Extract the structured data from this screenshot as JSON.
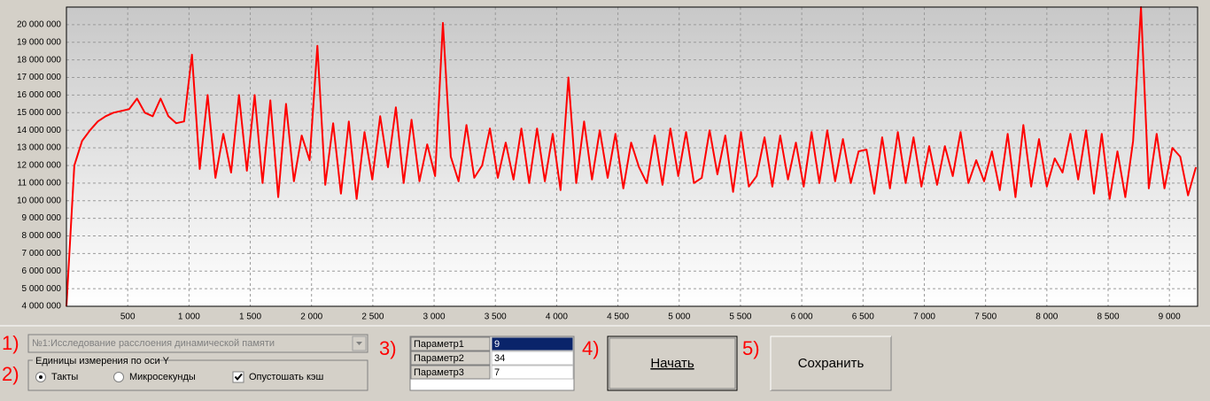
{
  "chart_data": {
    "type": "line",
    "color": "#ff0000",
    "grid": true,
    "xlim": [
      0,
      9230
    ],
    "ylim": [
      4000000,
      21000000
    ],
    "xticks": [
      500,
      {
        "value": 1000,
        "label": "1 000"
      },
      {
        "value": 1500,
        "label": "1 500"
      },
      {
        "value": 2000,
        "label": "2 000"
      },
      {
        "value": 2500,
        "label": "2 500"
      },
      {
        "value": 3000,
        "label": "3 000"
      },
      {
        "value": 3500,
        "label": "3 500"
      },
      {
        "value": 4000,
        "label": "4 000"
      },
      {
        "value": 4500,
        "label": "4 500"
      },
      {
        "value": 5000,
        "label": "5 000"
      },
      {
        "value": 5500,
        "label": "5 500"
      },
      {
        "value": 6000,
        "label": "6 000"
      },
      {
        "value": 6500,
        "label": "6 500"
      },
      {
        "value": 7000,
        "label": "7 000"
      },
      {
        "value": 7500,
        "label": "7 500"
      },
      {
        "value": 8000,
        "label": "8 000"
      },
      {
        "value": 8500,
        "label": "8 500"
      },
      {
        "value": 9000,
        "label": "9 000"
      }
    ],
    "yticks": [
      {
        "value": 4000000,
        "label": "4 000 000"
      },
      {
        "value": 5000000,
        "label": "5 000 000"
      },
      {
        "value": 6000000,
        "label": "6 000 000"
      },
      {
        "value": 7000000,
        "label": "7 000 000"
      },
      {
        "value": 8000000,
        "label": "8 000 000"
      },
      {
        "value": 9000000,
        "label": "9 000 000"
      },
      {
        "value": 10000000,
        "label": "10 000 000"
      },
      {
        "value": 11000000,
        "label": "11 000 000"
      },
      {
        "value": 12000000,
        "label": "12 000 000"
      },
      {
        "value": 13000000,
        "label": "13 000 000"
      },
      {
        "value": 14000000,
        "label": "14 000 000"
      },
      {
        "value": 15000000,
        "label": "15 000 000"
      },
      {
        "value": 16000000,
        "label": "16 000 000"
      },
      {
        "value": 17000000,
        "label": "17 000 000"
      },
      {
        "value": 18000000,
        "label": "18 000 000"
      },
      {
        "value": 19000000,
        "label": "19 000 000"
      },
      {
        "value": 20000000,
        "label": "20 000 000"
      }
    ],
    "x": [
      0,
      64,
      128,
      192,
      256,
      320,
      384,
      448,
      512,
      576,
      640,
      704,
      768,
      832,
      896,
      960,
      1024,
      1088,
      1152,
      1216,
      1280,
      1344,
      1408,
      1472,
      1536,
      1600,
      1664,
      1728,
      1792,
      1856,
      1920,
      1984,
      2048,
      2112,
      2176,
      2240,
      2304,
      2368,
      2432,
      2496,
      2560,
      2624,
      2688,
      2752,
      2816,
      2880,
      2944,
      3008,
      3072,
      3136,
      3200,
      3264,
      3328,
      3392,
      3456,
      3520,
      3584,
      3648,
      3712,
      3776,
      3840,
      3904,
      3968,
      4032,
      4096,
      4160,
      4224,
      4288,
      4352,
      4416,
      4480,
      4544,
      4608,
      4672,
      4736,
      4800,
      4864,
      4928,
      4992,
      5056,
      5120,
      5184,
      5248,
      5312,
      5376,
      5440,
      5504,
      5568,
      5632,
      5696,
      5760,
      5824,
      5888,
      5952,
      6016,
      6080,
      6144,
      6208,
      6272,
      6336,
      6400,
      6464,
      6528,
      6592,
      6656,
      6720,
      6784,
      6848,
      6912,
      6976,
      7040,
      7104,
      7168,
      7232,
      7296,
      7360,
      7424,
      7488,
      7552,
      7616,
      7680,
      7744,
      7808,
      7872,
      7936,
      8000,
      8064,
      8128,
      8192,
      8256,
      8320,
      8384,
      8448,
      8512,
      8576,
      8640,
      8704,
      8768,
      8832,
      8896,
      8960,
      9024,
      9088,
      9152,
      9216
    ],
    "values": [
      4000000,
      12000000,
      13400000,
      14000000,
      14500000,
      14800000,
      15000000,
      15100000,
      15200000,
      15800000,
      15000000,
      14800000,
      15800000,
      14800000,
      14400000,
      14500000,
      18300000,
      11800000,
      16000000,
      11300000,
      13800000,
      11600000,
      16000000,
      11700000,
      16000000,
      11000000,
      15700000,
      10200000,
      15500000,
      11100000,
      13700000,
      12300000,
      18800000,
      10900000,
      14400000,
      10400000,
      14500000,
      10100000,
      13900000,
      11200000,
      14800000,
      11900000,
      15300000,
      11000000,
      14600000,
      11100000,
      13200000,
      11400000,
      20100000,
      12500000,
      11100000,
      14300000,
      11300000,
      12000000,
      14100000,
      11300000,
      13300000,
      11200000,
      14100000,
      11000000,
      14100000,
      11100000,
      13800000,
      10600000,
      17000000,
      11000000,
      14500000,
      11200000,
      14000000,
      11300000,
      13800000,
      10700000,
      13300000,
      11900000,
      11000000,
      13700000,
      10900000,
      14100000,
      11400000,
      13900000,
      11000000,
      11300000,
      14000000,
      11500000,
      13700000,
      10500000,
      13900000,
      10800000,
      11400000,
      13600000,
      10800000,
      13700000,
      11200000,
      13300000,
      10800000,
      13900000,
      11000000,
      14000000,
      11100000,
      13500000,
      11000000,
      12800000,
      12900000,
      10400000,
      13600000,
      10700000,
      13900000,
      11000000,
      13600000,
      10800000,
      13100000,
      10900000,
      13100000,
      11400000,
      13900000,
      11000000,
      12300000,
      11100000,
      12800000,
      10600000,
      13800000,
      10200000,
      14300000,
      10800000,
      13500000,
      10800000,
      12400000,
      11600000,
      13800000,
      11200000,
      14000000,
      10400000,
      13800000,
      10100000,
      12800000,
      10200000,
      13400000,
      21000000,
      10700000,
      13800000,
      10700000,
      13000000,
      12500000,
      10300000,
      11900000
    ]
  },
  "controls": {
    "step_labels": [
      "1)",
      "2)",
      "3)",
      "4)",
      "5)"
    ],
    "combo": "№1:Исследование расслоения динамической памяти",
    "units_group": {
      "title": "Единицы измерения по оси Y",
      "radio_ticks": "Такты",
      "radio_micro": "Микросекунды",
      "selected": "radio_ticks",
      "flush_cache": "Опустошать кэш",
      "flush_checked": true
    },
    "params": [
      [
        "Параметр1",
        "9"
      ],
      [
        "Параметр2",
        "34"
      ],
      [
        "Параметр3",
        "7"
      ]
    ],
    "start_button": "Начать",
    "save_button": "Сохранить"
  }
}
